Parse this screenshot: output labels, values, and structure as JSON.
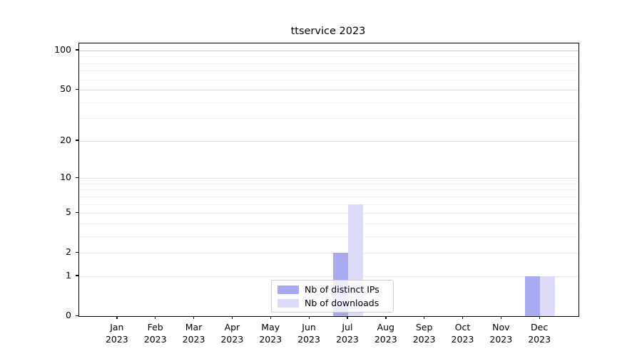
{
  "chart_data": {
    "type": "bar",
    "title": "ttservice 2023",
    "categories": [
      "Jan",
      "Feb",
      "Mar",
      "Apr",
      "May",
      "Jun",
      "Jul",
      "Aug",
      "Sep",
      "Oct",
      "Nov",
      "Dec"
    ],
    "category_year": "2023",
    "series": [
      {
        "name": "Nb of distinct IPs",
        "color": "#a9a9f2",
        "values": [
          0,
          0,
          0,
          0,
          0,
          0,
          2,
          0,
          0,
          0,
          0,
          1
        ]
      },
      {
        "name": "Nb of downloads",
        "color": "#dcdcf8",
        "values": [
          0,
          0,
          0,
          0,
          0,
          0,
          6,
          0,
          0,
          0,
          0,
          1
        ]
      }
    ],
    "yticks": [
      0,
      1,
      2,
      5,
      10,
      20,
      50,
      100
    ],
    "minor_ticks": [
      3,
      4,
      6,
      7,
      8,
      9,
      30,
      40,
      60,
      70,
      80,
      90
    ],
    "scale": "log1p",
    "ylim": [
      0,
      113
    ],
    "xlabel": "",
    "ylabel": "",
    "grid": "horizontal",
    "legend_position": "lower-center"
  },
  "colors": {
    "background": "#ffffff",
    "axis": "#000000",
    "grid_major": "#e2e2e2",
    "grid_minor": "#f3f3f3",
    "grid_top_line": "#c8c8c8",
    "legend_border": "#cccccc"
  }
}
